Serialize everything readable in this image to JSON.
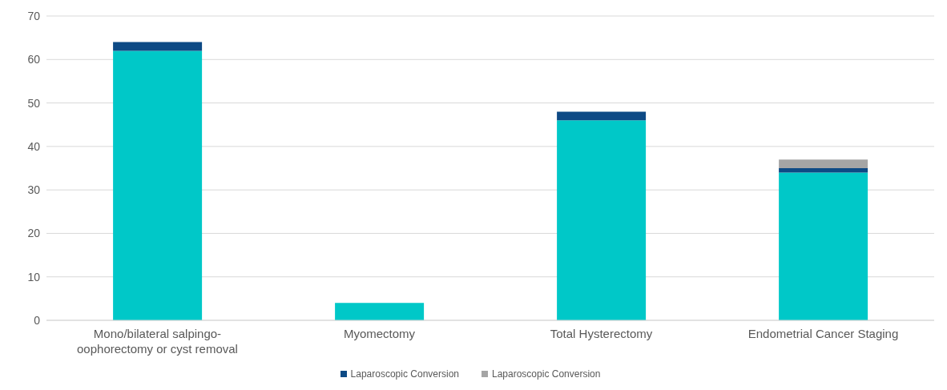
{
  "chart_data": {
    "type": "bar",
    "stacked": true,
    "categories": [
      "Mono/bilateral salpingo-oophorectomy or cyst removal",
      "Myomectomy",
      "Total Hysterectomy",
      "Endometrial Cancer Staging"
    ],
    "series": [
      {
        "color": "#00c8c8",
        "values": [
          62,
          4,
          46,
          34
        ]
      },
      {
        "name": "Laparoscopic Conversion",
        "color": "#0d4a85",
        "values": [
          2,
          0,
          2,
          1
        ]
      },
      {
        "name": "Laparoscopic Conversion",
        "color": "#a5a5a5",
        "values": [
          0,
          0,
          0,
          2
        ]
      }
    ],
    "ylim": [
      0,
      70
    ],
    "yticks": [
      0,
      10,
      20,
      30,
      40,
      50,
      60,
      70
    ],
    "grid": "y",
    "legend": "bottom"
  }
}
